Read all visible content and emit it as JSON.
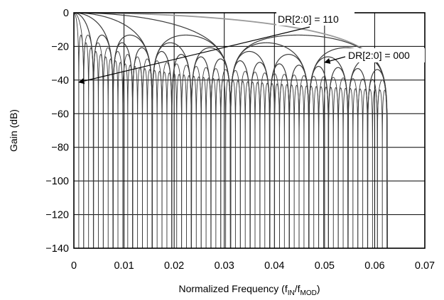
{
  "chart_data": {
    "type": "line",
    "title": "",
    "xlabel": "Normalized Frequency (f",
    "xlabel_sub1": "IN",
    "xlabel_mid": "/f",
    "xlabel_sub2": "MOD",
    "xlabel_end": ")",
    "ylabel": "Gain (dB)",
    "xlim": [
      0,
      0.07
    ],
    "ylim": [
      -140,
      0
    ],
    "xticks": [
      0,
      0.01,
      0.02,
      0.03,
      0.04,
      0.05,
      0.06,
      0.07
    ],
    "xtick_labels": [
      "0",
      "0.01",
      "0.02",
      "0.03",
      "0.04",
      "0.05",
      "0.06",
      "0.07"
    ],
    "yticks": [
      0,
      -20,
      -40,
      -60,
      -80,
      -100,
      -120,
      -140
    ],
    "ytick_labels": [
      "0",
      "−20",
      "−40",
      "−60",
      "−80",
      "−100",
      "−120",
      "−140"
    ],
    "grid": true,
    "curve_model": "sinc",
    "null_spacing": [
      0.0625,
      0.03125,
      0.015625,
      0.0078125,
      0.00390625,
      0.001953125,
      0.0009765625
    ],
    "x_end": 0.0625,
    "annotations": [
      {
        "text": "DR[2:0] = 110",
        "points_to": [
          0.002,
          -40
        ]
      },
      {
        "text": "DR[2:0] = 000",
        "points_to": [
          0.0425,
          -40
        ]
      }
    ],
    "colors": {
      "curve": "#3a3a3a",
      "outer_curve": "#9a9a9a",
      "grid": "#000000"
    }
  }
}
